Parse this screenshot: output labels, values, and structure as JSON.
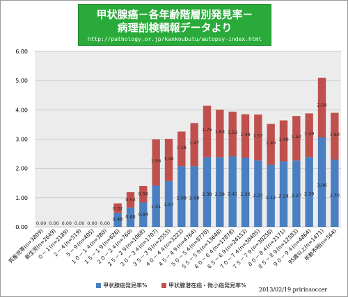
{
  "title_lines": [
    "甲状腺癌－各年齢階層別発見率－",
    "病理剖検輯報データより",
    "http://pathology.or.jp/kankoubutu/autopsy-index.html"
  ],
  "credit": "2013/02/19 pririnsoccer",
  "colors": {
    "title_bg": "#2aaa3a",
    "series1": "#4a7fc1",
    "series2": "#c0504d",
    "grid": "#c8c8c8",
    "plot_bg": "#ececec"
  },
  "chart_data": {
    "type": "bar",
    "stacked": true,
    "categories": [
      "死産児等(n=3809)",
      "新生児(n=2649)",
      "０－１(n=2189)",
      "２－４(n=519)",
      "５－９(n=405)",
      "１０－１４(n=380)",
      "１５－１９(n=626)",
      "２０－２４(n=760)",
      "２５－２９(n=1068)",
      "３０－３４(n=1707)",
      "３５－３９(n=2553)",
      "４０－４４(n=3223)",
      "４５－４９(n=4764)",
      "５０－５４(n=8770)",
      "５５－５９(n=13648)",
      "６０－６４(n=17878)",
      "６５－６９(n=24153)",
      "７０－７４(n=30405)",
      "７５－７９(n=30258)",
      "８０－８４(n=2171)",
      "８５－８９(n=12583)",
      "９０－９４(n=4864)",
      "95歳以上(n=1471)",
      "年齢不明(n=564)"
    ],
    "series": [
      {
        "name": "甲状腺癌発見率%",
        "values": [
          0.0,
          0.0,
          0.0,
          0.0,
          0.0,
          0.0,
          0.48,
          0.66,
          0.84,
          1.41,
          1.57,
          2.08,
          2.08,
          2.38,
          2.38,
          2.41,
          2.36,
          2.27,
          2.12,
          2.24,
          2.27,
          2.39,
          3.06,
          2.3
        ]
      },
      {
        "name": "甲状腺潜在癌・微小癌発見率%",
        "values": [
          0.0,
          0.0,
          0.0,
          0.0,
          0.0,
          0.0,
          0.32,
          0.53,
          0.56,
          1.58,
          1.44,
          1.18,
          1.47,
          1.76,
          1.63,
          1.53,
          1.49,
          1.57,
          1.4,
          1.4,
          1.52,
          1.49,
          2.04,
          1.6
        ]
      }
    ],
    "ylim": [
      0,
      6
    ],
    "yticks": [
      "0.00",
      "1.00",
      "2.00",
      "3.00",
      "4.00",
      "5.00",
      "6.00"
    ],
    "grid": true,
    "legend": "bottom"
  }
}
